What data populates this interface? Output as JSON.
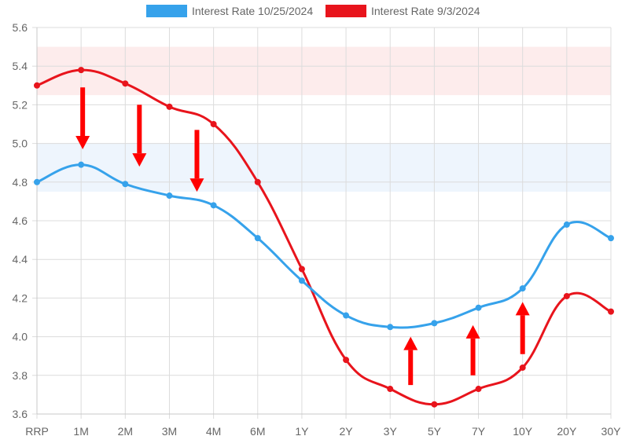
{
  "chart_data": {
    "type": "line",
    "title": "",
    "xlabel": "",
    "ylabel": "",
    "categories": [
      "RRP",
      "1M",
      "2M",
      "3M",
      "4M",
      "6M",
      "1Y",
      "2Y",
      "3Y",
      "5Y",
      "7Y",
      "10Y",
      "20Y",
      "30Y"
    ],
    "ylim": [
      3.6,
      5.6
    ],
    "yticks": [
      "3.6",
      "3.8",
      "4.0",
      "4.2",
      "4.4",
      "4.6",
      "4.8",
      "5.0",
      "5.2",
      "5.4",
      "5.6"
    ],
    "grid": true,
    "legend_position": "top-center",
    "series": [
      {
        "name": "Interest Rate 10/25/2024",
        "color": "#36a2eb",
        "values": [
          4.8,
          4.89,
          4.79,
          4.73,
          4.68,
          4.51,
          4.29,
          4.11,
          4.05,
          4.07,
          4.15,
          4.25,
          4.58,
          4.51
        ]
      },
      {
        "name": "Interest Rate 9/3/2024",
        "color": "#e8141c",
        "values": [
          5.3,
          5.38,
          5.31,
          5.19,
          5.1,
          4.8,
          4.35,
          3.88,
          3.73,
          3.65,
          3.73,
          3.84,
          4.21,
          4.13
        ]
      }
    ],
    "bands": [
      {
        "from": 5.25,
        "to": 5.5,
        "color": "#fdecec"
      },
      {
        "from": 4.75,
        "to": 5.0,
        "color": "#eef5fd"
      }
    ],
    "annotations": [
      {
        "type": "arrow",
        "direction": "down",
        "x_category": "1M",
        "from_value": 5.29,
        "to_value": 4.97,
        "color": "#ff0000"
      },
      {
        "type": "arrow",
        "direction": "down",
        "x_category": "2M",
        "from_value": 5.2,
        "to_value": 4.88,
        "color": "#ff0000"
      },
      {
        "type": "arrow",
        "direction": "down",
        "x_category": "3M",
        "from_value": 5.07,
        "to_value": 4.75,
        "color": "#ff0000"
      },
      {
        "type": "arrow",
        "direction": "up",
        "x_category": "3Y",
        "from_value": 3.75,
        "to_value": 4.0,
        "color": "#ff0000"
      },
      {
        "type": "arrow",
        "direction": "up",
        "x_category": "7Y",
        "from_value": 3.8,
        "to_value": 4.06,
        "color": "#ff0000"
      },
      {
        "type": "arrow",
        "direction": "up",
        "x_category": "10Y",
        "from_value": 3.91,
        "to_value": 4.18,
        "color": "#ff0000"
      }
    ]
  }
}
